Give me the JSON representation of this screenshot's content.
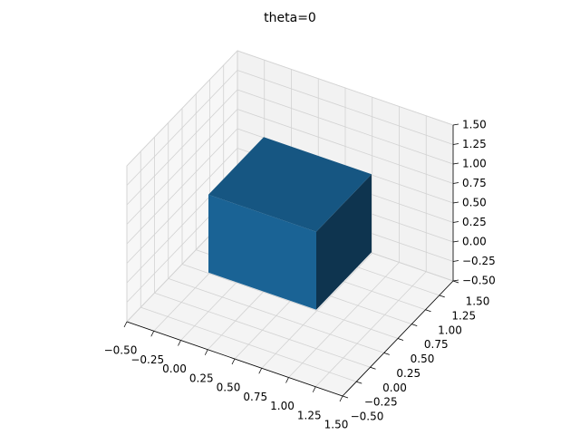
{
  "chart_data": {
    "type": "voxels",
    "title": "theta=0",
    "voxels": [
      [
        0,
        0,
        0
      ]
    ],
    "color": "#1f77b4",
    "xlim": [
      -0.5,
      1.5
    ],
    "ylim": [
      -0.5,
      1.5
    ],
    "zlim": [
      -0.5,
      1.5
    ],
    "xticks": [
      {
        "value": -0.5,
        "label": "−0.50"
      },
      {
        "value": -0.25,
        "label": "−0.25"
      },
      {
        "value": 0,
        "label": "0.00"
      },
      {
        "value": 0.25,
        "label": "0.25"
      },
      {
        "value": 0.5,
        "label": "0.50"
      },
      {
        "value": 0.75,
        "label": "0.75"
      },
      {
        "value": 1,
        "label": "1.00"
      },
      {
        "value": 1.25,
        "label": "1.25"
      },
      {
        "value": 1.5,
        "label": "1.50"
      }
    ],
    "yticks": [
      {
        "value": -0.5,
        "label": "−0.50"
      },
      {
        "value": -0.25,
        "label": "−0.25"
      },
      {
        "value": 0,
        "label": "0.00"
      },
      {
        "value": 0.25,
        "label": "0.25"
      },
      {
        "value": 0.5,
        "label": "0.50"
      },
      {
        "value": 0.75,
        "label": "0.75"
      },
      {
        "value": 1,
        "label": "1.00"
      },
      {
        "value": 1.25,
        "label": "1.25"
      },
      {
        "value": 1.5,
        "label": "1.50"
      }
    ],
    "zticks": [
      {
        "value": -0.5,
        "label": "−0.50"
      },
      {
        "value": -0.25,
        "label": "−0.25"
      },
      {
        "value": 0,
        "label": "0.00"
      },
      {
        "value": 0.25,
        "label": "0.25"
      },
      {
        "value": 0.5,
        "label": "0.50"
      },
      {
        "value": 0.75,
        "label": "0.75"
      },
      {
        "value": 1,
        "label": "1.00"
      },
      {
        "value": 1.25,
        "label": "1.25"
      },
      {
        "value": 1.5,
        "label": "1.50"
      }
    ],
    "grid": true
  }
}
